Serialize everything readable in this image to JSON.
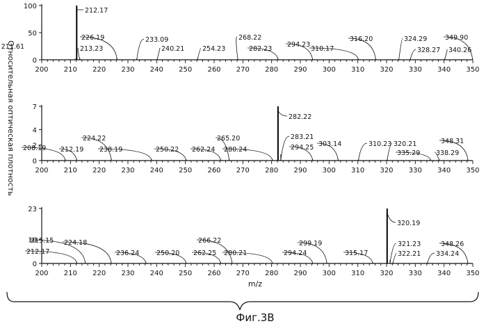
{
  "ylabel": "Относительная оптическая плотность",
  "xlabel": "m/z",
  "caption": "Фиг.3В",
  "chart_data": [
    {
      "type": "bar",
      "x_ticks": [
        "200",
        "210",
        "220",
        "230",
        "240",
        "250",
        "260",
        "270",
        "280",
        "290",
        "300",
        "310",
        "320",
        "330",
        "340",
        "350"
      ],
      "y_ticks": [
        "100",
        "50",
        "0"
      ],
      "xlim": [
        200,
        350
      ],
      "ylim": [
        0,
        100
      ],
      "peaks": [
        {
          "mz": 211.61,
          "value": 2,
          "label": "211.61"
        },
        {
          "mz": 212.17,
          "value": 100,
          "label": "212.17"
        },
        {
          "mz": 213.23,
          "value": 3,
          "label": "213.23"
        },
        {
          "mz": 226.19,
          "value": 3,
          "label": "226.19"
        },
        {
          "mz": 233.09,
          "value": 2,
          "label": "233.09"
        },
        {
          "mz": 240.21,
          "value": 2,
          "label": "240.21"
        },
        {
          "mz": 254.23,
          "value": 2,
          "label": "254.23"
        },
        {
          "mz": 268.22,
          "value": 2,
          "label": "268.22"
        },
        {
          "mz": 282.23,
          "value": 2,
          "label": "282.23"
        },
        {
          "mz": 294.23,
          "value": 2,
          "label": "294.23"
        },
        {
          "mz": 310.17,
          "value": 2,
          "label": "310.17"
        },
        {
          "mz": 316.2,
          "value": 2,
          "label": "316.20"
        },
        {
          "mz": 324.29,
          "value": 2,
          "label": "324.29"
        },
        {
          "mz": 328.27,
          "value": 2,
          "label": "328.27"
        },
        {
          "mz": 340.26,
          "value": 2,
          "label": "340.26"
        },
        {
          "mz": 349.9,
          "value": 2,
          "label": "349.90"
        }
      ]
    },
    {
      "type": "bar",
      "x_ticks": [
        "200",
        "210",
        "220",
        "230",
        "240",
        "250",
        "260",
        "270",
        "280",
        "290",
        "300",
        "310",
        "320",
        "330",
        "340",
        "350"
      ],
      "y_ticks": [
        "7",
        "4",
        "2",
        "0"
      ],
      "xlim": [
        200,
        350
      ],
      "ylim": [
        0,
        7
      ],
      "peaks": [
        {
          "mz": 208.19,
          "value": 0.15,
          "label": "208.19"
        },
        {
          "mz": 212.19,
          "value": 0.15,
          "label": "212.19"
        },
        {
          "mz": 224.22,
          "value": 0.2,
          "label": "224.22"
        },
        {
          "mz": 238.19,
          "value": 0.15,
          "label": "238.19"
        },
        {
          "mz": 250.22,
          "value": 0.15,
          "label": "250.22"
        },
        {
          "mz": 262.24,
          "value": 0.15,
          "label": "262.24"
        },
        {
          "mz": 265.2,
          "value": 0.2,
          "label": "265.20"
        },
        {
          "mz": 280.24,
          "value": 0.15,
          "label": "280.24"
        },
        {
          "mz": 282.22,
          "value": 7,
          "label": "282.22"
        },
        {
          "mz": 283.21,
          "value": 0.8,
          "label": "283.21"
        },
        {
          "mz": 294.25,
          "value": 0.2,
          "label": "294.25"
        },
        {
          "mz": 303.14,
          "value": 0.15,
          "label": "303.14"
        },
        {
          "mz": 310.23,
          "value": 0.15,
          "label": "310.23"
        },
        {
          "mz": 320.21,
          "value": 0.15,
          "label": "320.21"
        },
        {
          "mz": 335.29,
          "value": 0.15,
          "label": "335.29"
        },
        {
          "mz": 338.29,
          "value": 0.15,
          "label": "338.29"
        },
        {
          "mz": 348.31,
          "value": 0.15,
          "label": "348.31"
        }
      ]
    },
    {
      "type": "bar",
      "x_ticks": [
        "200",
        "210",
        "220",
        "230",
        "240",
        "250",
        "260",
        "270",
        "280",
        "290",
        "300",
        "310",
        "320",
        "330",
        "340",
        "350"
      ],
      "y_ticks": [
        "23",
        "10",
        "0"
      ],
      "xlim": [
        200,
        350
      ],
      "ylim": [
        0,
        23
      ],
      "peaks": [
        {
          "mz": 212.17,
          "value": 0.3,
          "label": "212.17"
        },
        {
          "mz": 215.15,
          "value": 0.3,
          "label": "215.15"
        },
        {
          "mz": 224.18,
          "value": 0.3,
          "label": "224.18"
        },
        {
          "mz": 236.24,
          "value": 0.3,
          "label": "236.24"
        },
        {
          "mz": 250.2,
          "value": 0.3,
          "label": "250.20"
        },
        {
          "mz": 262.25,
          "value": 0.3,
          "label": "262.25"
        },
        {
          "mz": 266.22,
          "value": 0.3,
          "label": "266.22"
        },
        {
          "mz": 280.21,
          "value": 0.3,
          "label": "280.21"
        },
        {
          "mz": 294.24,
          "value": 0.3,
          "label": "294.24"
        },
        {
          "mz": 299.19,
          "value": 0.3,
          "label": "299.19"
        },
        {
          "mz": 315.17,
          "value": 0.3,
          "label": "315.17"
        },
        {
          "mz": 320.19,
          "value": 23,
          "label": "320.19"
        },
        {
          "mz": 321.23,
          "value": 1.5,
          "label": "321.23"
        },
        {
          "mz": 322.21,
          "value": 0.3,
          "label": "322.21"
        },
        {
          "mz": 334.24,
          "value": 0.3,
          "label": "334.24"
        },
        {
          "mz": 348.26,
          "value": 0.3,
          "label": "348.26"
        }
      ]
    }
  ]
}
